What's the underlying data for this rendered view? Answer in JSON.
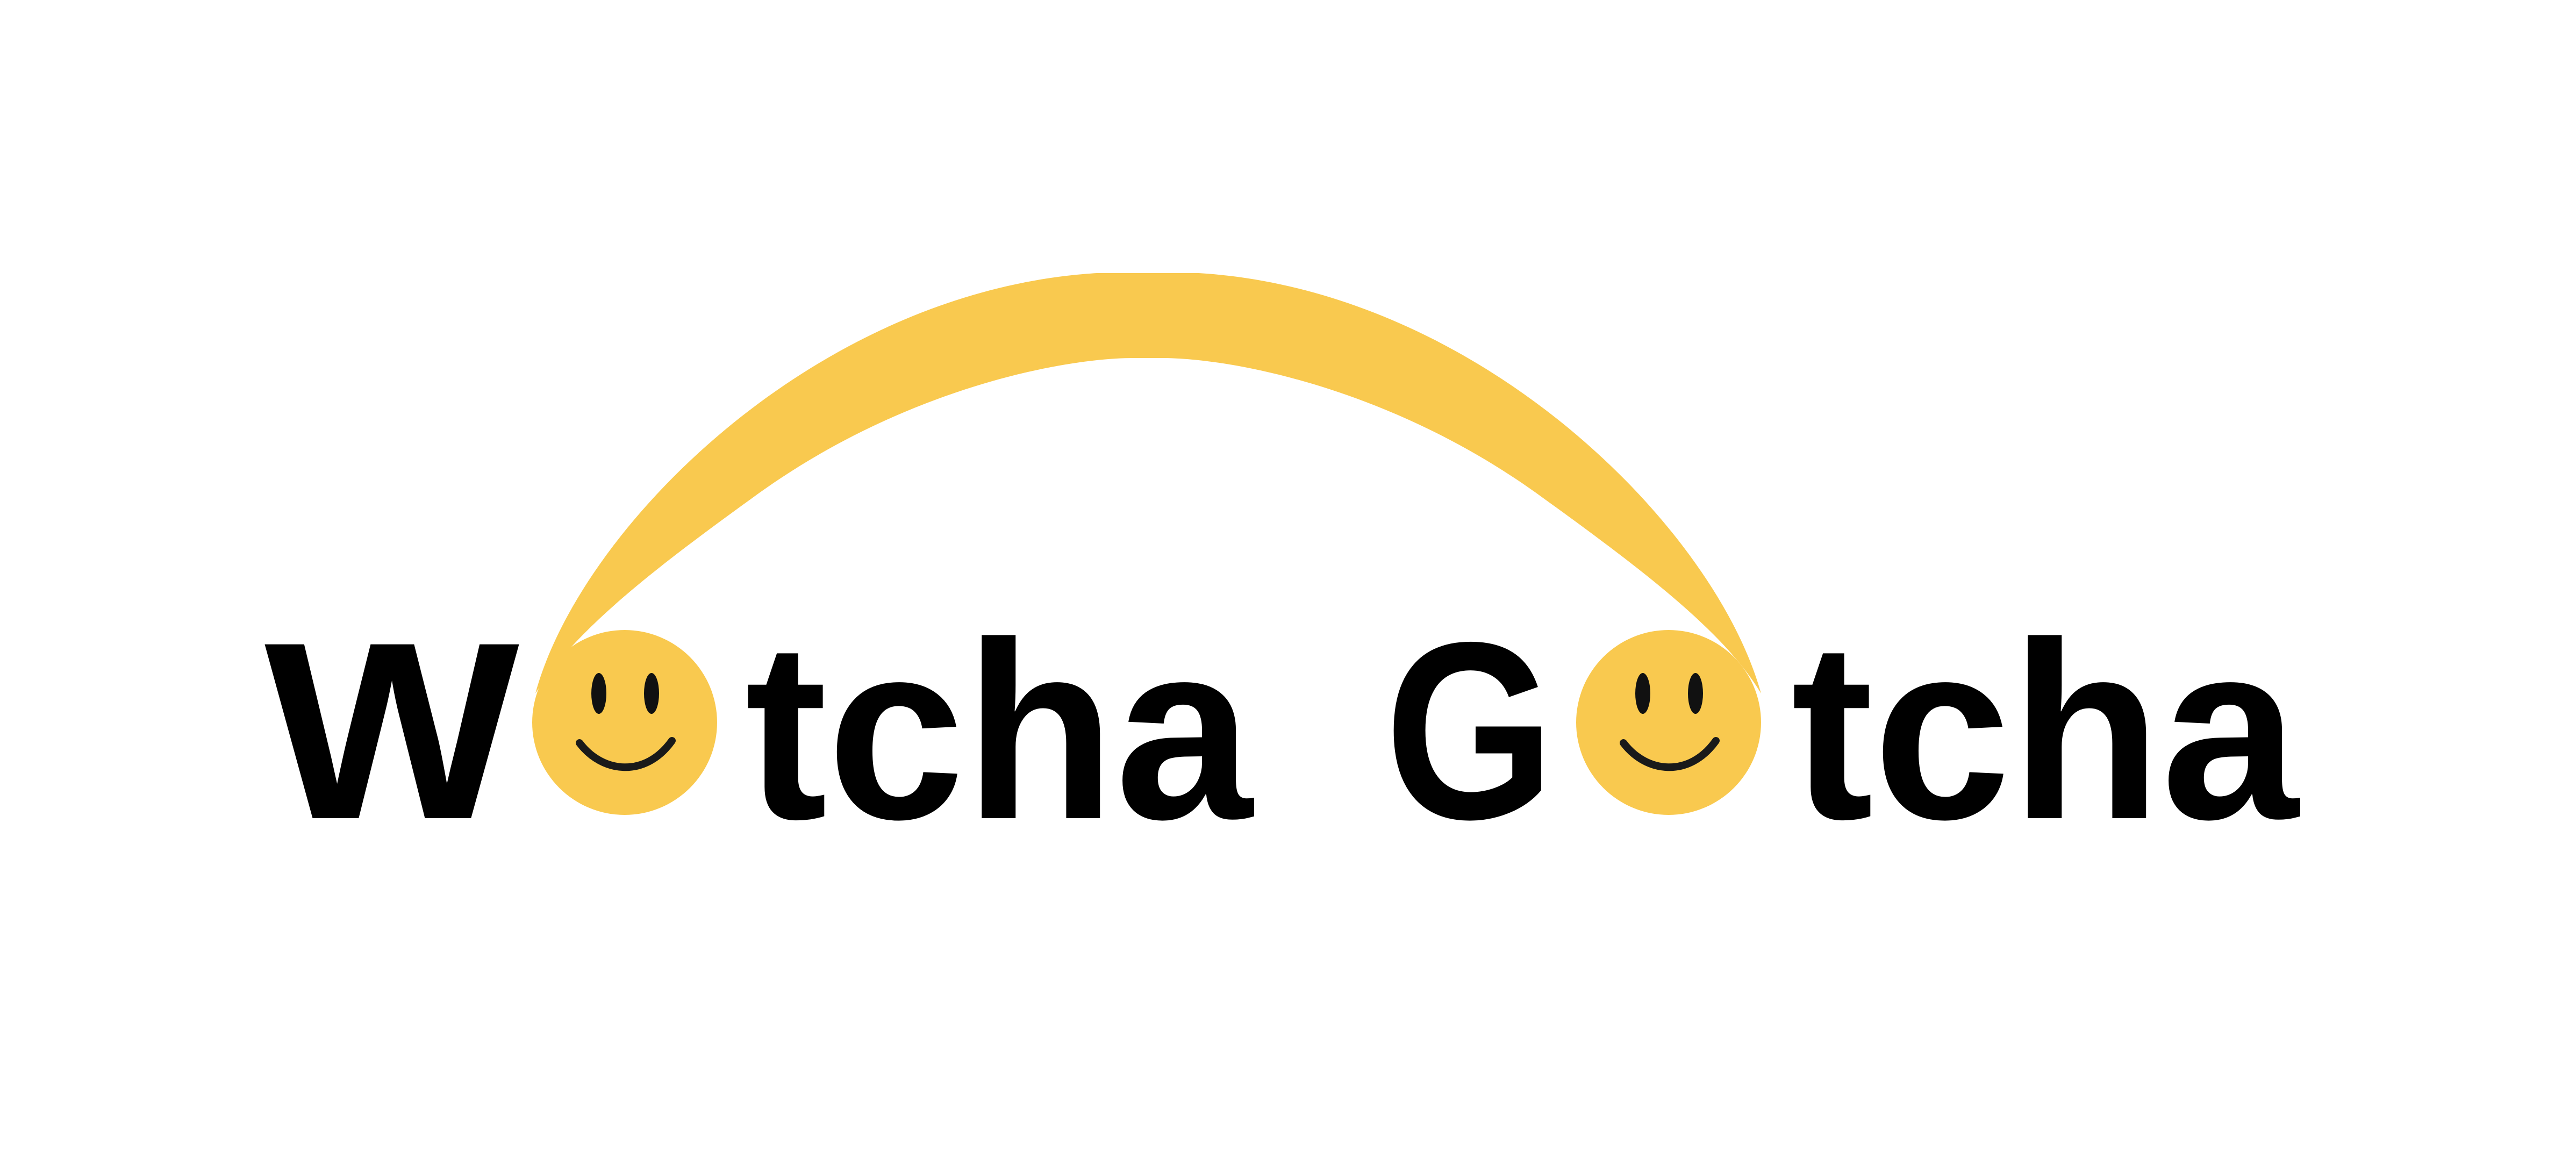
{
  "logo": {
    "word1": {
      "first_letter": "W",
      "rest": "tcha"
    },
    "word2": {
      "first_letter": "G",
      "rest": "tcha"
    },
    "full_text": "Wotcha Gotcha",
    "icon": "smiley-face-icon",
    "colors": {
      "accent": "#F9C94F",
      "text": "#000000",
      "background": "#FFFFFF"
    }
  }
}
